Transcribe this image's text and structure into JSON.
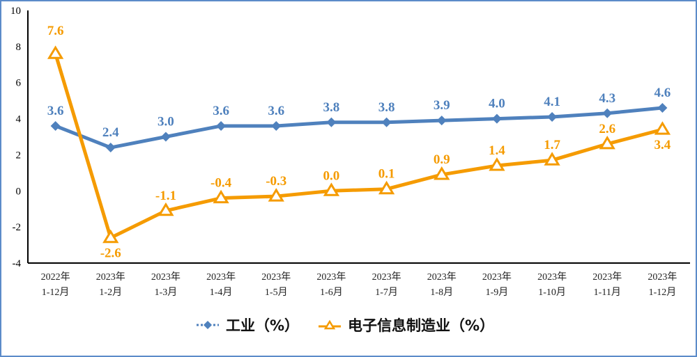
{
  "chart_data": {
    "type": "line",
    "title": "",
    "xlabel": "",
    "ylabel": "",
    "ylim": [
      -4,
      10
    ],
    "yticks": [
      -4,
      -2,
      0,
      2,
      4,
      6,
      8,
      10
    ],
    "categories": [
      [
        "2022年",
        "1-12月"
      ],
      [
        "2023年",
        "1-2月"
      ],
      [
        "2023年",
        "1-3月"
      ],
      [
        "2023年",
        "1-4月"
      ],
      [
        "2023年",
        "1-5月"
      ],
      [
        "2023年",
        "1-6月"
      ],
      [
        "2023年",
        "1-7月"
      ],
      [
        "2023年",
        "1-8月"
      ],
      [
        "2023年",
        "1-9月"
      ],
      [
        "2023年",
        "1-10月"
      ],
      [
        "2023年",
        "1-11月"
      ],
      [
        "2023年",
        "1-12月"
      ]
    ],
    "series": [
      {
        "name": "工业（%）",
        "color": "#4f81bd",
        "marker": "diamond",
        "values": [
          3.6,
          2.4,
          3.0,
          3.6,
          3.6,
          3.8,
          3.8,
          3.9,
          4.0,
          4.1,
          4.3,
          4.6
        ],
        "labels": [
          "3.6",
          "2.4",
          "3.0",
          "3.6",
          "3.6",
          "3.8",
          "3.8",
          "3.9",
          "4.0",
          "4.1",
          "4.3",
          "4.6"
        ]
      },
      {
        "name": "电子信息制造业（%）",
        "color": "#f59b00",
        "marker": "triangle-open",
        "values": [
          7.6,
          -2.6,
          -1.1,
          -0.4,
          -0.3,
          0.0,
          0.1,
          0.9,
          1.4,
          1.7,
          2.6,
          3.4
        ],
        "labels": [
          "7.6",
          "-2.6",
          "-1.1",
          "-0.4",
          "-0.3",
          "0.0",
          "0.1",
          "0.9",
          "1.4",
          "1.7",
          "2.6",
          "3.4"
        ]
      }
    ],
    "grid": false,
    "legend_position": "bottom"
  },
  "legend": {
    "industry": "工业（%）",
    "electronics": "电子信息制造业（%）"
  },
  "colors": {
    "industry": "#4f81bd",
    "electronics": "#f59b00",
    "frame": "#5b8bc9"
  }
}
